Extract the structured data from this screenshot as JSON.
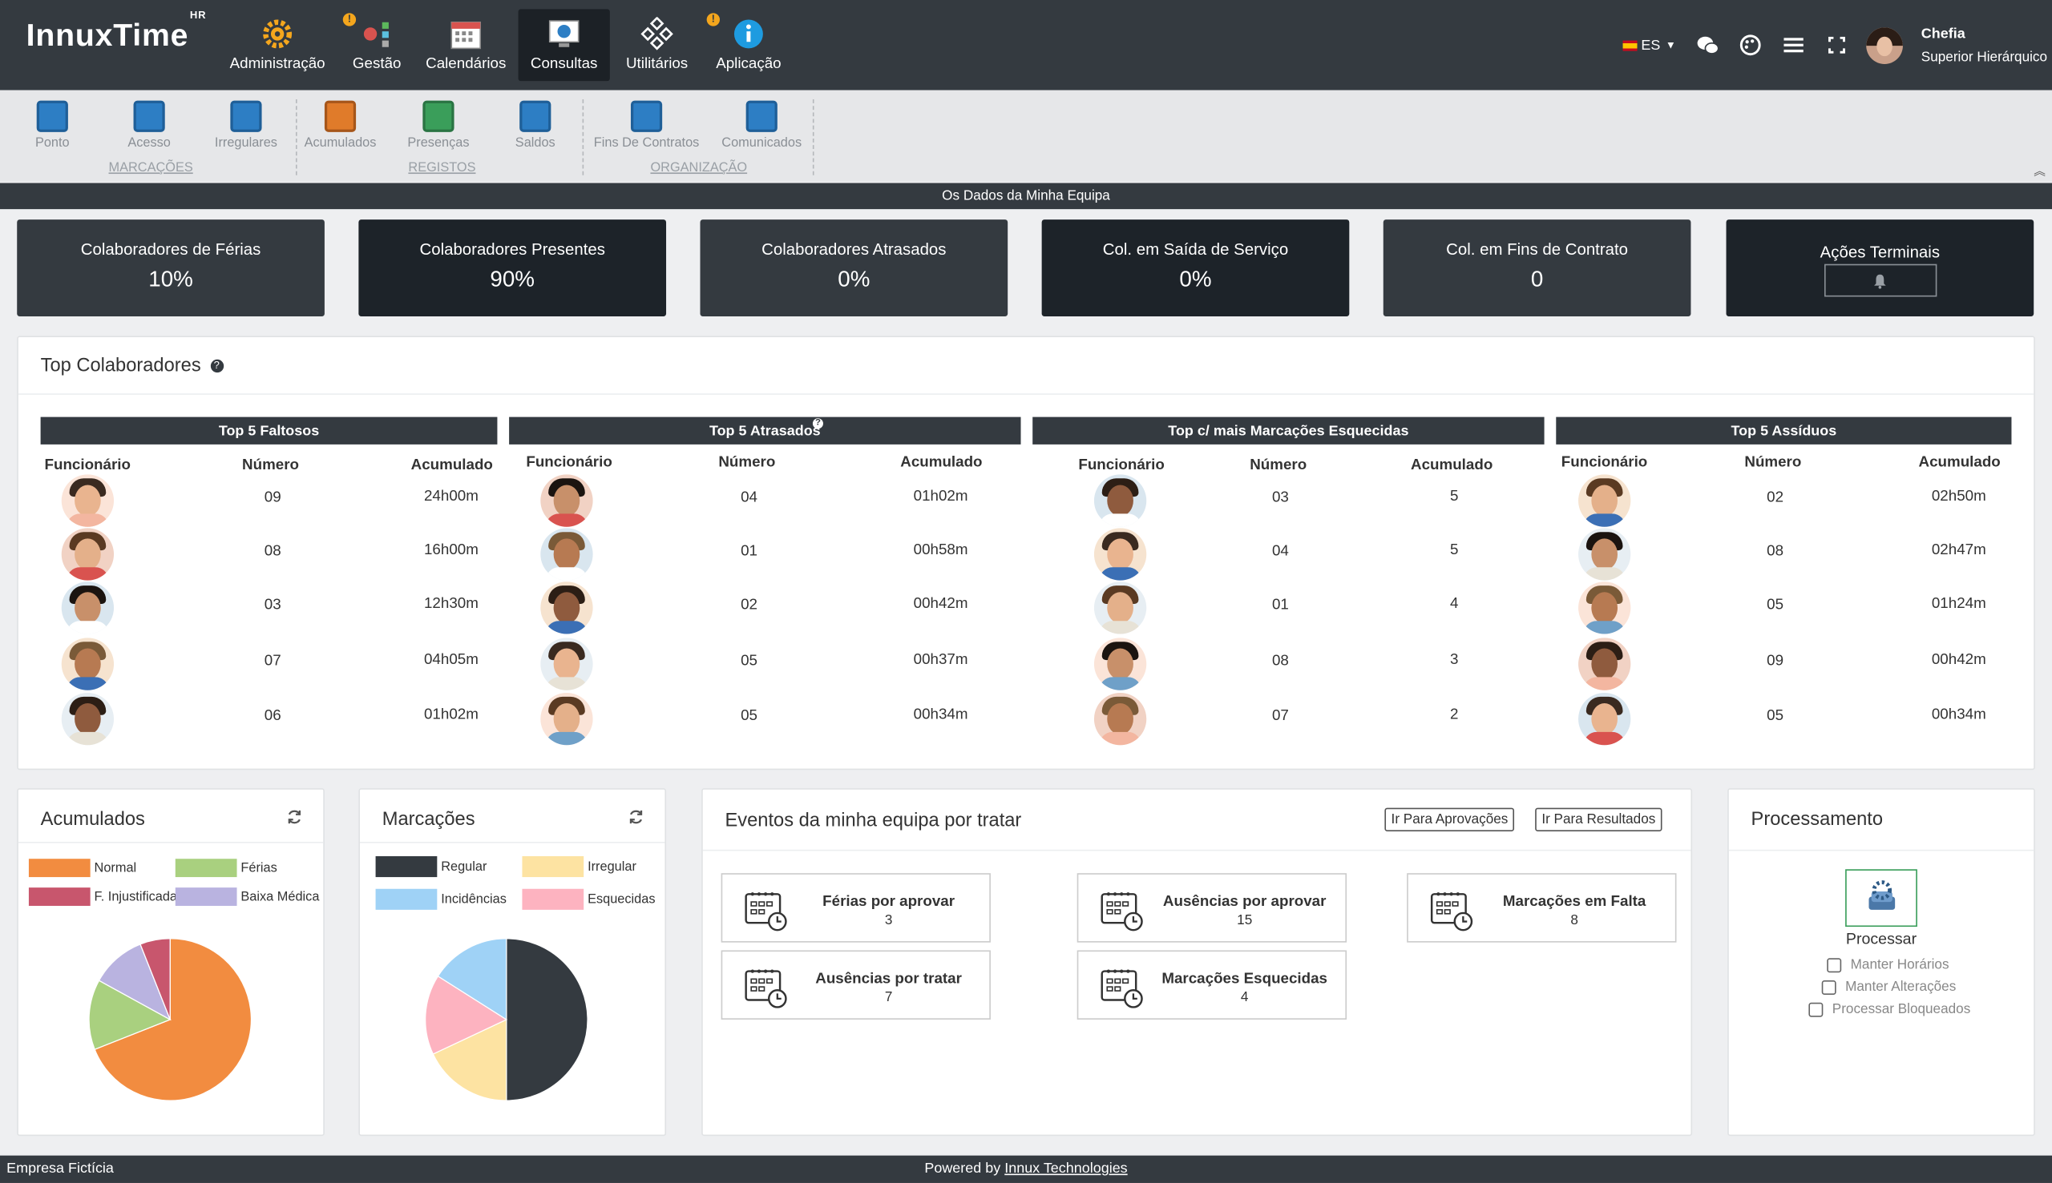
{
  "app": {
    "logo": "InnuxTime",
    "logo_sup": "HR"
  },
  "nav": [
    {
      "label": "Administração",
      "icon": "gear-icon",
      "badge": false
    },
    {
      "label": "Gestão",
      "icon": "management-icon",
      "badge": true
    },
    {
      "label": "Calendários",
      "icon": "calendar-icon",
      "badge": false
    },
    {
      "label": "Consultas",
      "icon": "search-screen-icon",
      "badge": false,
      "active": true
    },
    {
      "label": "Utilitários",
      "icon": "diamond-tools-icon",
      "badge": false
    },
    {
      "label": "Aplicação",
      "icon": "info-icon",
      "badge": true
    }
  ],
  "badge_symbol": "!",
  "user": {
    "language": "ES",
    "name": "Chefia",
    "role": "Superior Hierárquico"
  },
  "toolbar": {
    "items": [
      {
        "label": "Ponto"
      },
      {
        "label": "Acesso"
      },
      {
        "label": "Irregulares"
      },
      {
        "label": "Acumulados"
      },
      {
        "label": "Presenças"
      },
      {
        "label": "Saldos"
      },
      {
        "label": "Fins De Contratos"
      },
      {
        "label": "Comunicados"
      }
    ],
    "groups": [
      "MARCAÇÕES",
      "REGISTOS",
      "ORGANIZAÇÃO"
    ]
  },
  "band_title": "Os Dados da Minha Equipa",
  "kpis": [
    {
      "label": "Colaboradores de Férias",
      "value": "10%"
    },
    {
      "label": "Colaboradores Presentes",
      "value": "90%"
    },
    {
      "label": "Colaboradores Atrasados",
      "value": "0%"
    },
    {
      "label": "Col. em Saída de Serviço",
      "value": "0%"
    },
    {
      "label": "Col. em Fins de Contrato",
      "value": "0"
    },
    {
      "label": "Ações Terminais",
      "value": ""
    }
  ],
  "top": {
    "title": "Top Colaboradores",
    "col_headers": [
      "Funcionário",
      "Número",
      "Acumulado"
    ],
    "tables": [
      {
        "title": "Top 5 Faltosos",
        "rows": [
          [
            "09",
            "24h00m"
          ],
          [
            "08",
            "16h00m"
          ],
          [
            "03",
            "12h30m"
          ],
          [
            "07",
            "04h05m"
          ],
          [
            "06",
            "01h02m"
          ]
        ]
      },
      {
        "title": "Top 5 Atrasados",
        "rows": [
          [
            "04",
            "01h02m"
          ],
          [
            "01",
            "00h58m"
          ],
          [
            "02",
            "00h42m"
          ],
          [
            "05",
            "00h37m"
          ],
          [
            "05",
            "00h34m"
          ]
        ]
      },
      {
        "title": "Top c/ mais Marcações Esquecidas",
        "rows": [
          [
            "03",
            "5"
          ],
          [
            "04",
            "5"
          ],
          [
            "01",
            "4"
          ],
          [
            "08",
            "3"
          ],
          [
            "07",
            "2"
          ]
        ]
      },
      {
        "title": "Top 5 Assíduos",
        "rows": [
          [
            "02",
            "02h50m"
          ],
          [
            "08",
            "02h47m"
          ],
          [
            "05",
            "01h24m"
          ],
          [
            "09",
            "00h42m"
          ],
          [
            "05",
            "00h34m"
          ]
        ]
      }
    ]
  },
  "acumulados": {
    "title": "Acumulados",
    "legend": [
      {
        "label": "Normal",
        "color": "#f28c40"
      },
      {
        "label": "Férias",
        "color": "#a9d07f"
      },
      {
        "label": "F. Injustificada",
        "color": "#c8566d"
      },
      {
        "label": "Baixa Médica",
        "color": "#b9b3e0"
      }
    ]
  },
  "marcacoes": {
    "title": "Marcações",
    "legend": [
      {
        "label": "Regular",
        "color": "#343a40"
      },
      {
        "label": "Irregular",
        "color": "#fde3a2"
      },
      {
        "label": "Incidências",
        "color": "#9fd2f6"
      },
      {
        "label": "Esquecidas",
        "color": "#fdb3c0"
      }
    ]
  },
  "chart_data": [
    {
      "type": "pie",
      "title": "Acumulados",
      "categories": [
        "Normal",
        "Férias",
        "F. Injustificada",
        "Baixa Médica"
      ],
      "values": [
        69,
        14,
        6,
        11
      ],
      "colors": [
        "#f28c40",
        "#a9d07f",
        "#c8566d",
        "#b9b3e0"
      ]
    },
    {
      "type": "pie",
      "title": "Marcações",
      "categories": [
        "Regular",
        "Irregular",
        "Incidências",
        "Esquecidas"
      ],
      "values": [
        50,
        18,
        16,
        16
      ],
      "colors": [
        "#343a40",
        "#fde3a2",
        "#9fd2f6",
        "#fdb3c0"
      ]
    }
  ],
  "eventos": {
    "title": "Eventos da minha equipa por tratar",
    "btn_aprovacoes": "Ir Para Aprovações",
    "btn_resultados": "Ir Para Resultados",
    "items": [
      {
        "label": "Férias por aprovar",
        "count": "3"
      },
      {
        "label": "Ausências por aprovar",
        "count": "15"
      },
      {
        "label": "Marcações em Falta",
        "count": "8"
      },
      {
        "label": "Ausências por tratar",
        "count": "7"
      },
      {
        "label": "Marcações Esquecidas",
        "count": "4"
      }
    ]
  },
  "processamento": {
    "title": "Processamento",
    "button": "Processar",
    "options": [
      "Manter Horários",
      "Manter Alterações",
      "Processar Bloqueados"
    ]
  },
  "footer": {
    "company": "Empresa Fictícia",
    "powered": "Powered by",
    "powered_link": "Innux Technologies"
  }
}
